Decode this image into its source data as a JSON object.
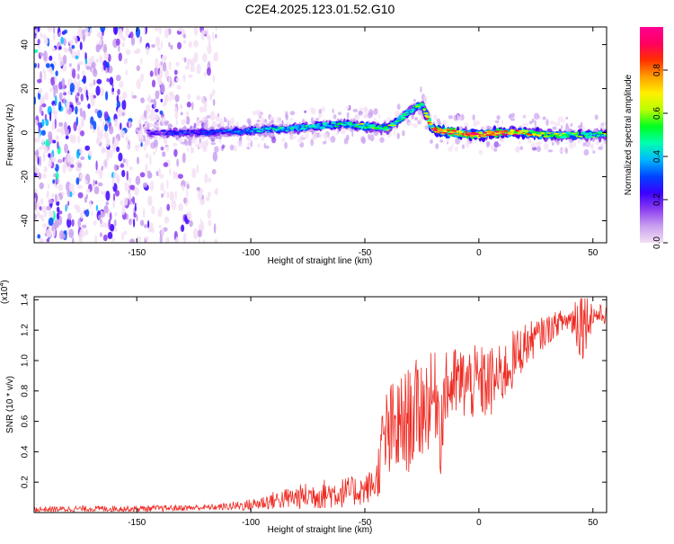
{
  "title": "C2E4.2025.123.01.52.G10",
  "top_chart": {
    "xlabel": "Height of straight line (km)",
    "ylabel": "Frequency (Hz)",
    "xticks": [
      "-150",
      "-100",
      "-50",
      "0",
      "50"
    ],
    "yticks": [
      "40",
      "20",
      "0",
      "-20",
      "-40"
    ],
    "colorbar_label": "Normalized spectral amplitude",
    "colorbar_ticks": [
      "0.0",
      "0.2",
      "0.4",
      "0.6",
      "0.8"
    ],
    "colormap": [
      "#f3e0f5",
      "#c9a0ef",
      "#8d3ff0",
      "#3a00ff",
      "#0044ff",
      "#00b8ff",
      "#00ffb0",
      "#00ff20",
      "#b8ff00",
      "#fff000",
      "#ffa000",
      "#ff3000",
      "#ff0060",
      "#ff0090"
    ]
  },
  "bottom_chart": {
    "xlabel": "Height of straight line (km)",
    "ylabel": "SNR (10 * v/v)",
    "exponent_label": "(x10",
    "exponent_power": "4",
    "xticks": [
      "-150",
      "-100",
      "-50",
      "0",
      "50"
    ],
    "yticks": [
      "1.4",
      "1.2",
      "1.0",
      "0.8",
      "0.6",
      "0.4",
      "0.2"
    ],
    "line_color": "#ee2a22"
  },
  "chart_data": [
    {
      "type": "heatmap",
      "title": "C2E4.2025.123.01.52.G10",
      "xlabel": "Height of straight line (km)",
      "ylabel": "Frequency (Hz)",
      "xlim": [
        -195,
        56
      ],
      "ylim": [
        -50,
        48
      ],
      "xticks": [
        -150,
        -100,
        -50,
        0,
        50
      ],
      "yticks": [
        -40,
        -20,
        0,
        20,
        40
      ],
      "colorbar": {
        "label": "Normalized spectral amplitude",
        "range": [
          0,
          1
        ],
        "ticks": [
          0.0,
          0.2,
          0.4,
          0.6,
          0.8
        ]
      },
      "ridge": {
        "x": [
          -145,
          -120,
          -100,
          -80,
          -60,
          -50,
          -40,
          -35,
          -30,
          -25,
          -20,
          -10,
          0,
          10,
          20,
          30,
          40,
          56
        ],
        "frequency": [
          0,
          0,
          1,
          2,
          4,
          3,
          2,
          6,
          10,
          13,
          1,
          0,
          -1,
          0,
          0,
          -1,
          -1,
          -1
        ],
        "amplitude": [
          0.25,
          0.3,
          0.4,
          0.45,
          0.45,
          0.5,
          0.55,
          0.5,
          0.45,
          0.5,
          0.9,
          0.85,
          0.9,
          0.85,
          0.7,
          0.6,
          0.55,
          0.5
        ]
      },
      "noise_region_x": [
        -195,
        -115
      ]
    },
    {
      "type": "line",
      "xlabel": "Height of straight line (km)",
      "ylabel": "SNR (10 * v/v)",
      "y_scale_factor": 10000,
      "xlim": [
        -195,
        56
      ],
      "ylim": [
        0,
        1.42
      ],
      "xticks": [
        -150,
        -100,
        -50,
        0,
        50
      ],
      "yticks": [
        0.2,
        0.4,
        0.6,
        0.8,
        1.0,
        1.2,
        1.4
      ],
      "series": [
        {
          "x": [
            -195,
            -170,
            -150,
            -130,
            -115,
            -100,
            -90,
            -80,
            -70,
            -60,
            -50,
            -45,
            -42,
            -40,
            -35,
            -30,
            -25,
            -20,
            -18,
            -17,
            -15,
            -10,
            -5,
            0,
            5,
            10,
            15,
            20,
            25,
            30,
            35,
            40,
            45,
            50,
            56
          ],
          "mean": [
            0.02,
            0.025,
            0.025,
            0.03,
            0.035,
            0.05,
            0.08,
            0.1,
            0.12,
            0.13,
            0.15,
            0.2,
            0.45,
            0.5,
            0.55,
            0.62,
            0.7,
            0.75,
            0.78,
            0.5,
            0.8,
            0.85,
            0.85,
            0.85,
            0.85,
            0.9,
            1.0,
            1.1,
            1.15,
            1.2,
            1.25,
            1.27,
            1.28,
            1.3,
            1.3
          ],
          "spread": [
            0.02,
            0.02,
            0.02,
            0.02,
            0.02,
            0.04,
            0.06,
            0.08,
            0.1,
            0.1,
            0.1,
            0.12,
            0.3,
            0.35,
            0.35,
            0.35,
            0.35,
            0.3,
            0.3,
            0.3,
            0.25,
            0.25,
            0.25,
            0.25,
            0.25,
            0.2,
            0.2,
            0.15,
            0.12,
            0.1,
            0.08,
            0.08,
            0.3,
            0.08,
            0.06
          ]
        }
      ]
    }
  ]
}
